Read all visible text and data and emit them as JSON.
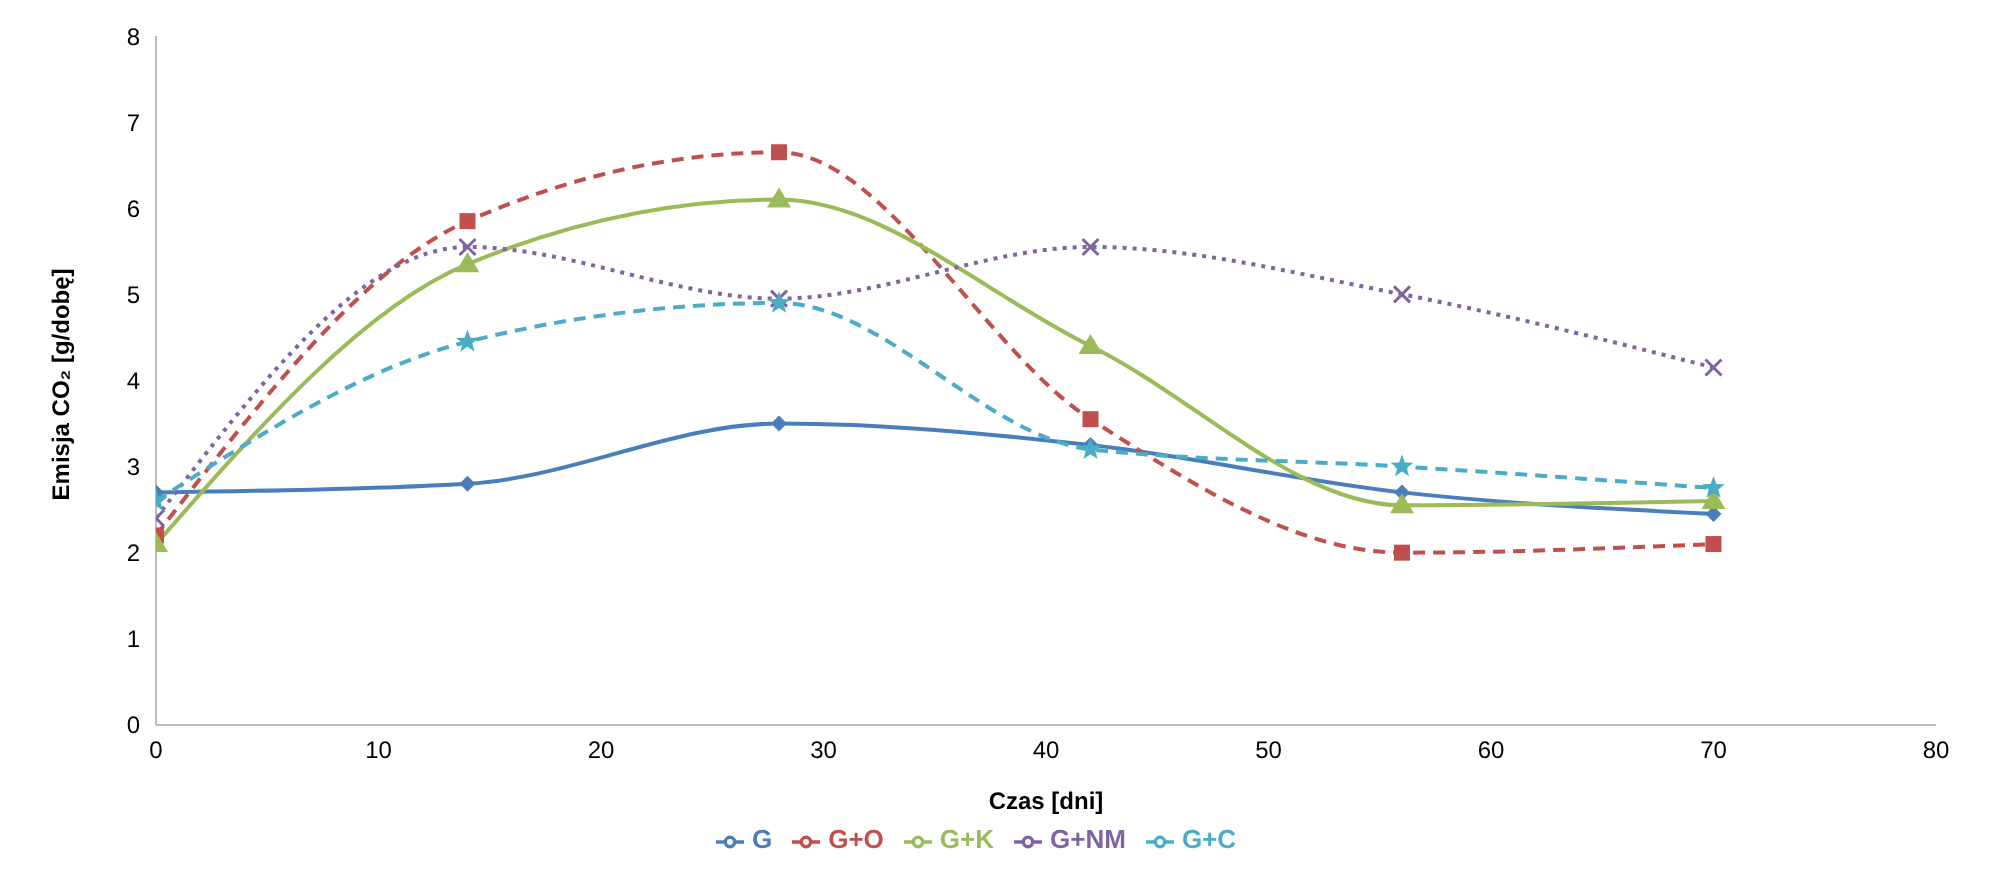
{
  "chart_data": {
    "type": "line",
    "xlabel": "Czas [dni]",
    "ylabel": "Emisja CO₂ [g/dobę]",
    "x": [
      0,
      14,
      28,
      42,
      56,
      70
    ],
    "xlim": [
      0,
      80
    ],
    "xticks": [
      0,
      10,
      20,
      30,
      40,
      50,
      60,
      70,
      80
    ],
    "ylim": [
      0,
      8
    ],
    "yticks": [
      0,
      1,
      2,
      3,
      4,
      5,
      6,
      7,
      8
    ],
    "grid": false,
    "legend": "bottom",
    "series": [
      {
        "name": "G",
        "color": "#4a7ebb",
        "values": [
          2.7,
          2.8,
          3.5,
          3.25,
          2.7,
          2.45
        ],
        "marker": "diamond",
        "line_style": "solid"
      },
      {
        "name": "G+O",
        "color": "#c0504d",
        "values": [
          2.2,
          5.85,
          6.65,
          3.55,
          2.0,
          2.1
        ],
        "marker": "square",
        "line_style": "dashed"
      },
      {
        "name": "G+K",
        "color": "#9bbb59",
        "values": [
          2.1,
          5.35,
          6.1,
          4.4,
          2.55,
          2.6
        ],
        "marker": "triangle",
        "line_style": "solid"
      },
      {
        "name": "G+NM",
        "color": "#8064a2",
        "values": [
          2.4,
          5.55,
          4.95,
          5.55,
          5.0,
          4.15
        ],
        "marker": "cross",
        "line_style": "dotted"
      },
      {
        "name": "G+C",
        "color": "#4bacc6",
        "values": [
          2.6,
          4.45,
          4.9,
          3.2,
          3.0,
          2.75
        ],
        "marker": "star",
        "line_style": "dashed"
      }
    ]
  }
}
